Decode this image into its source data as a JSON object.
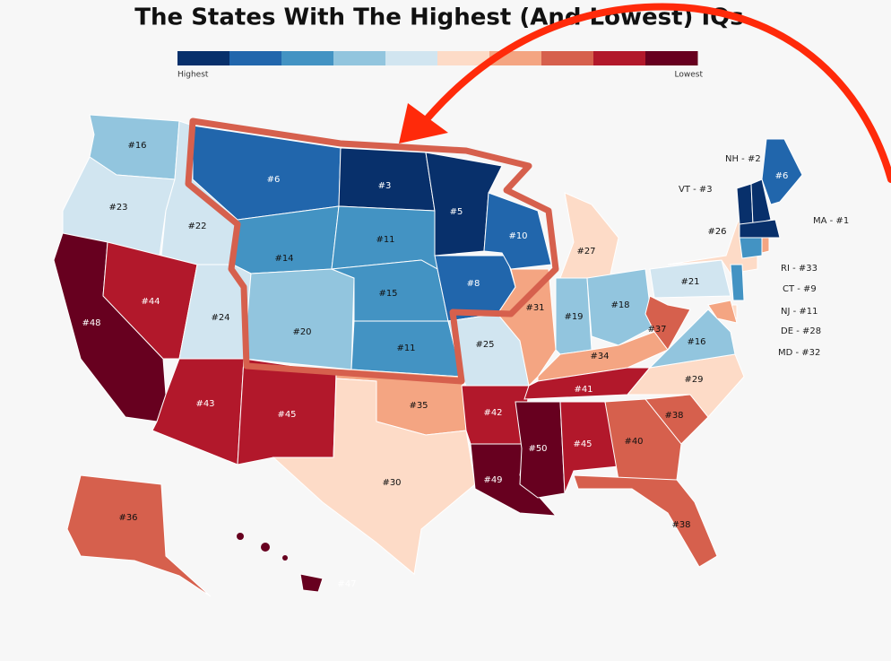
{
  "title": "The States With The Highest (And Lowest) IQs",
  "legend": {
    "colors": [
      "#08306b",
      "#2166ac",
      "#4393c3",
      "#92c5de",
      "#d1e5f0",
      "#fddbc7",
      "#f4a582",
      "#d6604d",
      "#b2182b",
      "#67001f"
    ],
    "start_label": "Highest",
    "end_label": "Lowest"
  },
  "states": [
    {
      "label": "#16",
      "color": "#92c5de"
    },
    {
      "label": "#23",
      "color": "#d1e5f0"
    },
    {
      "label": "#48",
      "color": "#67001f"
    },
    {
      "label": "#22",
      "color": "#d1e5f0"
    },
    {
      "label": "#44",
      "color": "#b2182b"
    },
    {
      "label": "#6",
      "color": "#2166ac"
    },
    {
      "label": "#14",
      "color": "#4393c3"
    },
    {
      "label": "#24",
      "color": "#d1e5f0"
    },
    {
      "label": "#43",
      "color": "#b2182b"
    },
    {
      "label": "#20",
      "color": "#92c5de"
    },
    {
      "label": "#45",
      "color": "#b2182b"
    },
    {
      "label": "#3",
      "color": "#08306b"
    },
    {
      "label": "#11",
      "color": "#4393c3"
    },
    {
      "label": "#15",
      "color": "#4393c3"
    },
    {
      "label": "#11",
      "color": "#4393c3"
    },
    {
      "label": "#35",
      "color": "#f4a582"
    },
    {
      "label": "#30",
      "color": "#fddbc7"
    },
    {
      "label": "#5",
      "color": "#08306b"
    },
    {
      "label": "#8",
      "color": "#2166ac"
    },
    {
      "label": "#25",
      "color": "#d1e5f0"
    },
    {
      "label": "#42",
      "color": "#b2182b"
    },
    {
      "label": "#49",
      "color": "#67001f"
    },
    {
      "label": "#10",
      "color": "#2166ac"
    },
    {
      "label": "#31",
      "color": "#f4a582"
    },
    {
      "label": "#27",
      "color": "#fddbc7"
    },
    {
      "label": "#19",
      "color": "#92c5de"
    },
    {
      "label": "#18",
      "color": "#92c5de"
    },
    {
      "label": "#34",
      "color": "#f4a582"
    },
    {
      "label": "#41",
      "color": "#b2182b"
    },
    {
      "label": "#50",
      "color": "#67001f"
    },
    {
      "label": "#45",
      "color": "#b2182b"
    },
    {
      "label": "#40",
      "color": "#d6604d"
    },
    {
      "label": "#38",
      "color": "#d6604d"
    },
    {
      "label": "#29",
      "color": "#fddbc7"
    },
    {
      "label": "#38",
      "color": "#d6604d"
    },
    {
      "label": "#16",
      "color": "#92c5de"
    },
    {
      "label": "#37",
      "color": "#d6604d"
    },
    {
      "label": "#21",
      "color": "#d1e5f0"
    },
    {
      "label": "#26",
      "color": "#fddbc7"
    },
    {
      "label": "#6",
      "color": "#2166ac"
    },
    {
      "label": "VT - #3",
      "color": "#08306b"
    },
    {
      "label": "NH - #2",
      "color": "#08306b"
    },
    {
      "label": "MA - #1",
      "color": "#08306b"
    },
    {
      "label": "CT - #9",
      "color": "#4393c3"
    },
    {
      "label": "RI - #33",
      "color": "#f4a582"
    },
    {
      "label": "NJ - #11",
      "color": "#4393c3"
    },
    {
      "label": "DE - #28",
      "color": "#fddbc7"
    },
    {
      "label": "MD - #32",
      "color": "#f4a582"
    },
    {
      "label": "#36",
      "color": "#d6604d"
    },
    {
      "label": "#47",
      "color": "#67001f"
    }
  ]
}
